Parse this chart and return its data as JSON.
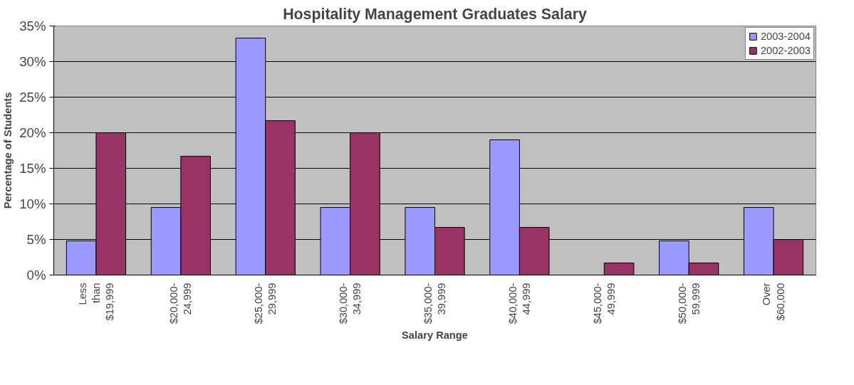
{
  "chart_data": {
    "type": "bar",
    "title": "Hospitality Management Graduates Salary",
    "xlabel": "Salary Range",
    "ylabel": "Percentage of Students",
    "categories": [
      "Less than $19,999",
      "$20,000-24,999",
      "$25,000-29,999",
      "$30,000-34,999",
      "$35,000-39,999",
      "$40,000-44,999",
      "$45,000-49,999",
      "$50,000-59,999",
      "Over $60,000"
    ],
    "series": [
      {
        "name": "2003-2004",
        "color": "#9999ff",
        "values": [
          4.8,
          9.5,
          33.3,
          9.5,
          9.5,
          19.0,
          null,
          4.8,
          9.5
        ]
      },
      {
        "name": "2002-2003",
        "color": "#993366",
        "values": [
          20.0,
          16.7,
          21.7,
          20.0,
          6.7,
          6.7,
          1.7,
          1.7,
          5.0
        ]
      }
    ],
    "ylim": [
      0,
      35
    ],
    "yticks": [
      {
        "value": 0,
        "label": "0%"
      },
      {
        "value": 5,
        "label": "5%"
      },
      {
        "value": 10,
        "label": "10%"
      },
      {
        "value": 15,
        "label": "15%"
      },
      {
        "value": 20,
        "label": "20%"
      },
      {
        "value": 25,
        "label": "25%"
      },
      {
        "value": 30,
        "label": "30%"
      },
      {
        "value": 35,
        "label": "35%"
      }
    ],
    "grid": "y",
    "legend": "top right"
  }
}
